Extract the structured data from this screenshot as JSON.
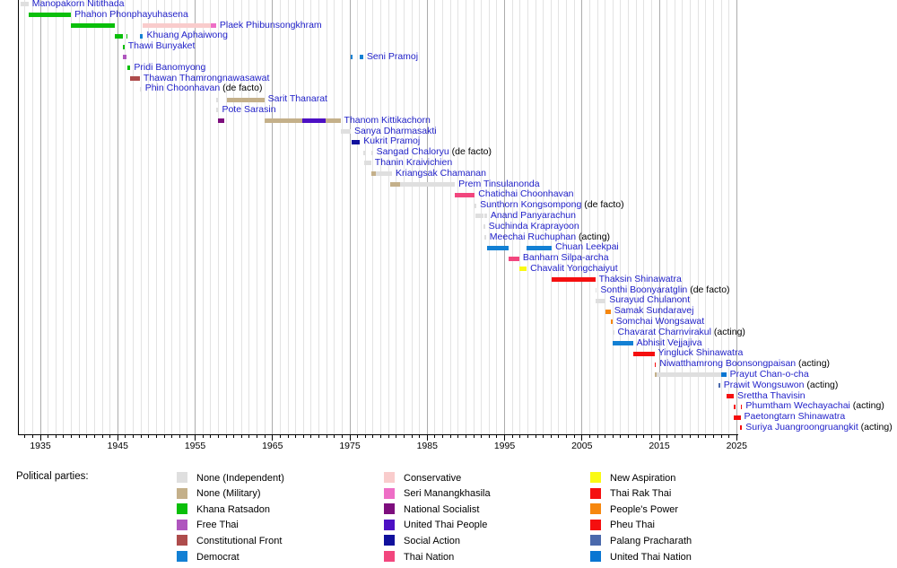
{
  "chart_data": {
    "type": "bar",
    "subtype": "timeline",
    "x_axis": {
      "tick_years": [
        1935,
        1945,
        1955,
        1965,
        1975,
        1985,
        1995,
        2005,
        2015,
        2025
      ],
      "minor_step": 1,
      "start": 1932.1,
      "end": 2025.8
    },
    "parties": {
      "ind": {
        "label": "None (Independent)",
        "color": "#DFDFDF"
      },
      "mil": {
        "label": "None (Military)",
        "color": "#C4B08A"
      },
      "kr": {
        "label": "Khana Ratsadon",
        "color": "#0ABF0A"
      },
      "ft": {
        "label": "Free Thai",
        "color": "#AF56BE"
      },
      "cf": {
        "label": "Constitutional Front",
        "color": "#AE4C4C"
      },
      "dem": {
        "label": "Democrat",
        "color": "#1380D4"
      },
      "con": {
        "label": "Conservative",
        "color": "#F9CCCC"
      },
      "seri": {
        "label": "Seri Manangkhasila",
        "color": "#EE6EC6"
      },
      "ns": {
        "label": "National Socialist",
        "color": "#7D0E7D"
      },
      "utp": {
        "label": "United Thai People",
        "color": "#4D10C4"
      },
      "sa": {
        "label": "Social Action",
        "color": "#10109C"
      },
      "tn": {
        "label": "Thai Nation",
        "color": "#F2467E"
      },
      "na": {
        "label": "New Aspiration",
        "color": "#FAFA14"
      },
      "trt": {
        "label": "Thai Rak Thai",
        "color": "#F50F0F"
      },
      "pp": {
        "label": "People's Power",
        "color": "#F6870E"
      },
      "pt": {
        "label": "Pheu Thai",
        "color": "#F50F0F"
      },
      "ppr": {
        "label": "Palang Pracharath",
        "color": "#4A69AC"
      },
      "utn": {
        "label": "United Thai Nation",
        "color": "#0976D2"
      }
    },
    "rows": [
      {
        "name": "Manopakorn Nitithada",
        "suffix": "",
        "bars": [
          [
            1932.49,
            1933.47,
            "ind"
          ]
        ]
      },
      {
        "name": "Phahon Phonphayuhasena",
        "suffix": "",
        "bars": [
          [
            1933.47,
            1938.96,
            "kr"
          ]
        ]
      },
      {
        "name": "Plaek Phibunsongkhram",
        "suffix": "",
        "bars": [
          [
            1938.96,
            1944.58,
            "kr"
          ],
          [
            1948.27,
            1957.03,
            "con"
          ],
          [
            1957.03,
            1957.71,
            "seri"
          ]
        ]
      },
      {
        "name": "Khuang Aphaiwong",
        "suffix": "",
        "bars": [
          [
            1944.58,
            1945.66,
            "kr"
          ],
          [
            1946.08,
            1946.23,
            "kr"
          ],
          [
            1947.86,
            1948.27,
            "dem"
          ]
        ]
      },
      {
        "name": "Thawi Bunyaket",
        "suffix": "",
        "bars": [
          [
            1945.66,
            1945.71,
            "kr"
          ]
        ]
      },
      {
        "name": "Seni Pramoj",
        "suffix": "",
        "bars": [
          [
            1945.71,
            1946.08,
            "ft"
          ],
          [
            1975.12,
            1975.2,
            "dem"
          ],
          [
            1976.3,
            1976.73,
            "dem"
          ]
        ]
      },
      {
        "name": "Pridi Banomyong",
        "suffix": "",
        "bars": [
          [
            1946.23,
            1946.64,
            "kr"
          ]
        ]
      },
      {
        "name": "Thawan Thamrongnawasawat",
        "suffix": "",
        "bars": [
          [
            1946.64,
            1947.86,
            "cf"
          ]
        ]
      },
      {
        "name": "Phin Choonhavan",
        "suffix": " (de facto)",
        "bars": [
          [
            1947.86,
            1947.9,
            "ind"
          ]
        ]
      },
      {
        "name": "Sarit Thanarat",
        "suffix": "",
        "bars": [
          [
            1957.71,
            1957.75,
            "ind"
          ],
          [
            1959.1,
            1963.94,
            "mil"
          ]
        ]
      },
      {
        "name": "Pote Sarasin",
        "suffix": "",
        "bars": [
          [
            1957.73,
            1958.01,
            "ind"
          ]
        ]
      },
      {
        "name": "Thanom Kittikachorn",
        "suffix": "",
        "bars": [
          [
            1958.01,
            1958.8,
            "ns"
          ],
          [
            1963.94,
            1968.8,
            "mil"
          ],
          [
            1968.8,
            1971.87,
            "utp"
          ],
          [
            1971.87,
            1973.79,
            "mil"
          ]
        ]
      },
      {
        "name": "Sanya Dharmasakti",
        "suffix": "",
        "bars": [
          [
            1973.79,
            1975.12,
            "ind"
          ]
        ]
      },
      {
        "name": "Kukrit Pramoj",
        "suffix": "",
        "bars": [
          [
            1975.2,
            1976.3,
            "sa"
          ]
        ]
      },
      {
        "name": "Sangad Chaloryu",
        "suffix": " (de facto)",
        "bars": [
          [
            1976.76,
            1976.8,
            "ind"
          ],
          [
            1977.76,
            1977.8,
            "ind"
          ]
        ]
      },
      {
        "name": "Thanin Kraivichien",
        "suffix": "",
        "bars": [
          [
            1976.8,
            1977.76,
            "ind"
          ]
        ]
      },
      {
        "name": "Kriangsak Chamanan",
        "suffix": "",
        "bars": [
          [
            1977.84,
            1978.4,
            "mil"
          ],
          [
            1978.4,
            1980.45,
            "ind"
          ]
        ]
      },
      {
        "name": "Prem Tinsulanonda",
        "suffix": "",
        "bars": [
          [
            1980.16,
            1981.5,
            "mil"
          ],
          [
            1981.5,
            1988.58,
            "ind"
          ]
        ]
      },
      {
        "name": "Chatichai Choonhavan",
        "suffix": "",
        "bars": [
          [
            1988.58,
            1991.15,
            "tn"
          ]
        ]
      },
      {
        "name": "Sunthorn Kongsompong",
        "suffix": " (de facto)",
        "bars": [
          [
            1991.15,
            1991.19,
            "ind"
          ]
        ]
      },
      {
        "name": "Anand Panyarachun",
        "suffix": "",
        "bars": [
          [
            1991.19,
            1992.26,
            "ind"
          ],
          [
            1992.43,
            1992.72,
            "ind"
          ]
        ]
      },
      {
        "name": "Suchinda Kraprayoon",
        "suffix": "",
        "bars": [
          [
            1992.27,
            1992.39,
            "ind"
          ]
        ]
      },
      {
        "name": "Meechai Ruchuphan",
        "suffix": " (acting)",
        "bars": [
          [
            1992.39,
            1992.43,
            "ind"
          ]
        ]
      },
      {
        "name": "Chuan Leekpai",
        "suffix": "",
        "bars": [
          [
            1992.72,
            1995.53,
            "dem"
          ],
          [
            1997.86,
            2001.1,
            "dem"
          ]
        ]
      },
      {
        "name": "Banharn Silpa-archa",
        "suffix": "",
        "bars": [
          [
            1995.53,
            1996.9,
            "tn"
          ]
        ]
      },
      {
        "name": "Chavalit Yongchaiyut",
        "suffix": "",
        "bars": [
          [
            1996.9,
            1997.86,
            "na"
          ]
        ]
      },
      {
        "name": "Thaksin Shinawatra",
        "suffix": "",
        "bars": [
          [
            2001.1,
            2006.72,
            "trt"
          ]
        ]
      },
      {
        "name": "Sonthi Boonyaratglin",
        "suffix": " (de facto)",
        "bars": [
          [
            2006.72,
            2006.76,
            "ind"
          ]
        ]
      },
      {
        "name": "Surayud Chulanont",
        "suffix": "",
        "bars": [
          [
            2006.76,
            2008.07,
            "ind"
          ]
        ]
      },
      {
        "name": "Samak Sundaravej",
        "suffix": "",
        "bars": [
          [
            2008.07,
            2008.71,
            "pp"
          ]
        ]
      },
      {
        "name": "Somchai Wongsawat",
        "suffix": "",
        "bars": [
          [
            2008.71,
            2008.94,
            "pp"
          ]
        ]
      },
      {
        "name": "Chavarat Charnvirakul",
        "suffix": " (acting)",
        "bars": [
          [
            2008.94,
            2008.97,
            "ind"
          ]
        ]
      },
      {
        "name": "Abhisit Vejjajiva",
        "suffix": "",
        "bars": [
          [
            2008.97,
            2011.6,
            "dem"
          ]
        ]
      },
      {
        "name": "Yingluck Shinawatra",
        "suffix": "",
        "bars": [
          [
            2011.6,
            2014.37,
            "pt"
          ]
        ]
      },
      {
        "name": "Niwatthamrong Boonsongpaisan",
        "suffix": " (acting)",
        "bars": [
          [
            2014.37,
            2014.41,
            "pt"
          ]
        ]
      },
      {
        "name": "Prayut Chan-o-cha",
        "suffix": "",
        "bars": [
          [
            2014.39,
            2014.65,
            "mil"
          ],
          [
            2014.65,
            2023.05,
            "ind"
          ],
          [
            2023.05,
            2023.65,
            "utn"
          ]
        ]
      },
      {
        "name": "Prawit Wongsuwon",
        "suffix": " (acting)",
        "bars": [
          [
            2022.65,
            2022.69,
            "ppr"
          ]
        ]
      },
      {
        "name": "Srettha Thavisin",
        "suffix": "",
        "bars": [
          [
            2023.65,
            2024.62,
            "pt"
          ]
        ]
      },
      {
        "name": "Phumtham Wechayachai",
        "suffix": " (acting)",
        "bars": [
          [
            2024.62,
            2024.67,
            "pt"
          ],
          [
            2025.5,
            2025.54,
            "pt"
          ]
        ]
      },
      {
        "name": "Paetongtarn Shinawatra",
        "suffix": "",
        "bars": [
          [
            2024.67,
            2025.5,
            "pt"
          ]
        ]
      },
      {
        "name": "Suriya Juangroongruangkit",
        "suffix": " (acting)",
        "bars": [
          [
            2025.49,
            2025.53,
            "pt"
          ]
        ]
      }
    ]
  },
  "legend": {
    "title": "Political parties:",
    "columns": [
      [
        "ind",
        "mil",
        "kr",
        "ft",
        "cf",
        "dem"
      ],
      [
        "con",
        "seri",
        "ns",
        "utp",
        "sa",
        "tn"
      ],
      [
        "na",
        "trt",
        "pp",
        "pt",
        "ppr",
        "utn"
      ]
    ]
  }
}
